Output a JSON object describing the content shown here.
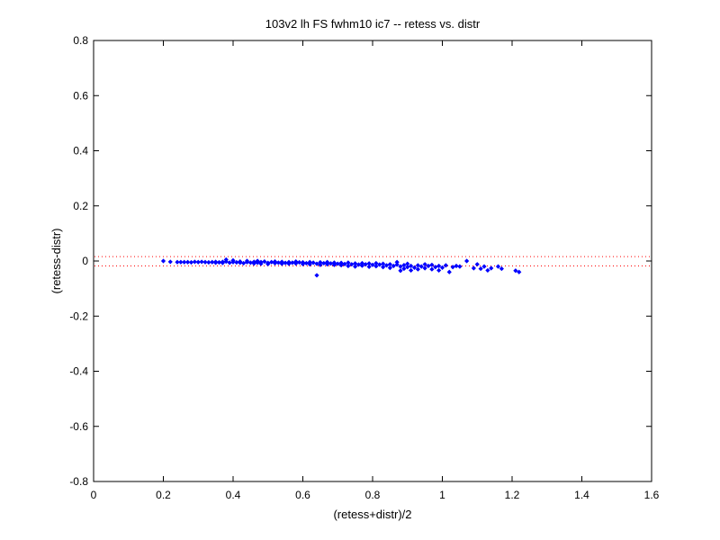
{
  "chart_data": {
    "type": "scatter",
    "title": "103v2 lh FS fwhm10 ic7 -- retess vs. distr",
    "xlabel": "(retess+distr)/2",
    "ylabel": "(retess-distr)",
    "xlim": [
      0,
      1.6
    ],
    "ylim": [
      -0.8,
      0.8
    ],
    "xticks": [
      "0",
      "0.2",
      "0.4",
      "0.6",
      "0.8",
      "1",
      "1.2",
      "1.4",
      "1.6"
    ],
    "yticks": [
      "-0.8",
      "-0.6",
      "-0.4",
      "-0.2",
      "0",
      "0.2",
      "0.4",
      "0.6",
      "0.8"
    ],
    "grid": false,
    "marker_color": "#0000ff",
    "reference_line_color": "#ff0000",
    "reference_lines": [
      0.016,
      -0.018
    ],
    "points": [
      [
        0.2,
        0.0
      ],
      [
        0.22,
        -0.003
      ],
      [
        0.24,
        -0.004
      ],
      [
        0.25,
        -0.004
      ],
      [
        0.26,
        -0.004
      ],
      [
        0.27,
        -0.004
      ],
      [
        0.28,
        -0.005
      ],
      [
        0.29,
        -0.003
      ],
      [
        0.3,
        -0.004
      ],
      [
        0.31,
        -0.003
      ],
      [
        0.32,
        -0.004
      ],
      [
        0.33,
        -0.005
      ],
      [
        0.34,
        -0.004
      ],
      [
        0.35,
        -0.003
      ],
      [
        0.35,
        -0.006
      ],
      [
        0.36,
        -0.005
      ],
      [
        0.37,
        -0.003
      ],
      [
        0.37,
        -0.007
      ],
      [
        0.38,
        0.005
      ],
      [
        0.38,
        -0.002
      ],
      [
        0.39,
        -0.006
      ],
      [
        0.4,
        -0.004
      ],
      [
        0.4,
        0.002
      ],
      [
        0.41,
        -0.005
      ],
      [
        0.42,
        -0.006
      ],
      [
        0.42,
        -0.002
      ],
      [
        0.43,
        -0.008
      ],
      [
        0.44,
        -0.004
      ],
      [
        0.44,
        0.0
      ],
      [
        0.45,
        -0.006
      ],
      [
        0.46,
        -0.009
      ],
      [
        0.46,
        -0.003
      ],
      [
        0.47,
        0.0
      ],
      [
        0.47,
        -0.006
      ],
      [
        0.48,
        -0.01
      ],
      [
        0.48,
        -0.004
      ],
      [
        0.49,
        -0.002
      ],
      [
        0.5,
        -0.007
      ],
      [
        0.5,
        -0.011
      ],
      [
        0.51,
        -0.004
      ],
      [
        0.52,
        -0.008
      ],
      [
        0.52,
        -0.002
      ],
      [
        0.53,
        -0.006
      ],
      [
        0.54,
        -0.01
      ],
      [
        0.54,
        -0.003
      ],
      [
        0.55,
        -0.007
      ],
      [
        0.56,
        -0.004
      ],
      [
        0.56,
        -0.01
      ],
      [
        0.57,
        -0.006
      ],
      [
        0.58,
        -0.002
      ],
      [
        0.58,
        -0.009
      ],
      [
        0.59,
        -0.005
      ],
      [
        0.6,
        -0.011
      ],
      [
        0.6,
        -0.005
      ],
      [
        0.61,
        -0.008
      ],
      [
        0.62,
        -0.004
      ],
      [
        0.62,
        -0.012
      ],
      [
        0.63,
        -0.006
      ],
      [
        0.64,
        -0.01
      ],
      [
        0.65,
        -0.005
      ],
      [
        0.65,
        -0.014
      ],
      [
        0.64,
        -0.052
      ],
      [
        0.66,
        -0.008
      ],
      [
        0.67,
        -0.012
      ],
      [
        0.67,
        -0.004
      ],
      [
        0.68,
        -0.009
      ],
      [
        0.69,
        -0.014
      ],
      [
        0.69,
        -0.006
      ],
      [
        0.7,
        -0.01
      ],
      [
        0.71,
        -0.015
      ],
      [
        0.71,
        -0.007
      ],
      [
        0.72,
        -0.011
      ],
      [
        0.73,
        -0.018
      ],
      [
        0.73,
        -0.006
      ],
      [
        0.74,
        -0.012
      ],
      [
        0.75,
        -0.009
      ],
      [
        0.75,
        -0.02
      ],
      [
        0.76,
        -0.013
      ],
      [
        0.77,
        -0.008
      ],
      [
        0.77,
        -0.017
      ],
      [
        0.78,
        -0.012
      ],
      [
        0.79,
        -0.021
      ],
      [
        0.79,
        -0.009
      ],
      [
        0.8,
        -0.014
      ],
      [
        0.81,
        -0.019
      ],
      [
        0.81,
        -0.008
      ],
      [
        0.82,
        -0.013
      ],
      [
        0.83,
        -0.022
      ],
      [
        0.83,
        -0.01
      ],
      [
        0.84,
        -0.016
      ],
      [
        0.85,
        -0.012
      ],
      [
        0.85,
        -0.025
      ],
      [
        0.86,
        -0.018
      ],
      [
        0.87,
        -0.013
      ],
      [
        0.87,
        -0.004
      ],
      [
        0.88,
        -0.02
      ],
      [
        0.88,
        -0.035
      ],
      [
        0.89,
        -0.015
      ],
      [
        0.89,
        -0.028
      ],
      [
        0.9,
        -0.022
      ],
      [
        0.9,
        -0.01
      ],
      [
        0.91,
        -0.018
      ],
      [
        0.91,
        -0.034
      ],
      [
        0.92,
        -0.024
      ],
      [
        0.93,
        -0.016
      ],
      [
        0.93,
        -0.03
      ],
      [
        0.94,
        -0.02
      ],
      [
        0.95,
        -0.012
      ],
      [
        0.95,
        -0.026
      ],
      [
        0.96,
        -0.018
      ],
      [
        0.97,
        -0.03
      ],
      [
        0.97,
        -0.014
      ],
      [
        0.98,
        -0.022
      ],
      [
        0.99,
        -0.018
      ],
      [
        0.99,
        -0.034
      ],
      [
        1.0,
        -0.024
      ],
      [
        1.01,
        -0.016
      ],
      [
        1.02,
        -0.04
      ],
      [
        1.03,
        -0.022
      ],
      [
        1.04,
        -0.018
      ],
      [
        1.05,
        -0.02
      ],
      [
        1.07,
        0.0
      ],
      [
        1.09,
        -0.026
      ],
      [
        1.1,
        -0.012
      ],
      [
        1.11,
        -0.028
      ],
      [
        1.12,
        -0.02
      ],
      [
        1.13,
        -0.034
      ],
      [
        1.14,
        -0.026
      ],
      [
        1.16,
        -0.02
      ],
      [
        1.17,
        -0.028
      ],
      [
        1.21,
        -0.035
      ],
      [
        1.22,
        -0.04
      ]
    ]
  }
}
